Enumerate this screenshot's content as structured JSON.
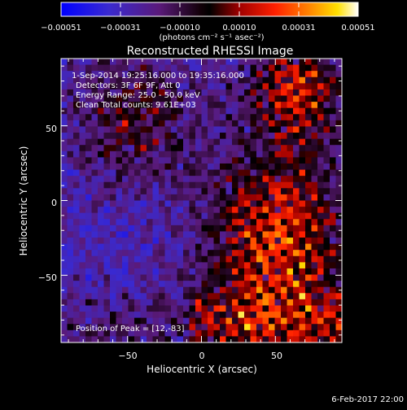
{
  "chart_data": {
    "type": "heatmap",
    "title": "Reconstructed RHESSI Image",
    "xlabel": "Heliocentric X (arcsec)",
    "ylabel": "Heliocentric Y (arcsec)",
    "xlim": [
      -95,
      95
    ],
    "ylim": [
      -95,
      95
    ],
    "x_ticks": [
      -50,
      0,
      50
    ],
    "y_ticks": [
      50,
      0,
      -50
    ],
    "x_tick_labels": [
      "−50",
      "0",
      "50"
    ],
    "y_tick_labels": [
      "50",
      "0",
      "−50"
    ],
    "colorbar": {
      "min": -0.00051,
      "max": 0.00051,
      "tick_labels": [
        "−0.00051",
        "−0.00031",
        "−0.00010",
        "0.00010",
        "0.00031",
        "0.00051"
      ],
      "units_label": "(photons cm⁻² s⁻¹ asec⁻²)",
      "colors": [
        "#0000ff",
        "#4a2aa8",
        "#5a1a7a",
        "#000000",
        "#aa0000",
        "#ff2000",
        "#ff8000",
        "#ffe000",
        "#ffffff"
      ]
    },
    "annotations": {
      "time_range": "1-Sep-2014 19:25:16.000 to 19:35:16.000",
      "detectors": "Detectors: 3F 6F 9F, Att 0",
      "energy": "Energy Range: 25.0 - 50.0 keV",
      "clean": "Clean     Total counts: 9.61E+03",
      "peak": "Position of Peak = [12,-83]"
    },
    "peak_position": [
      12,
      -83
    ],
    "footer_date": "6-Feb-2017 22:00"
  }
}
